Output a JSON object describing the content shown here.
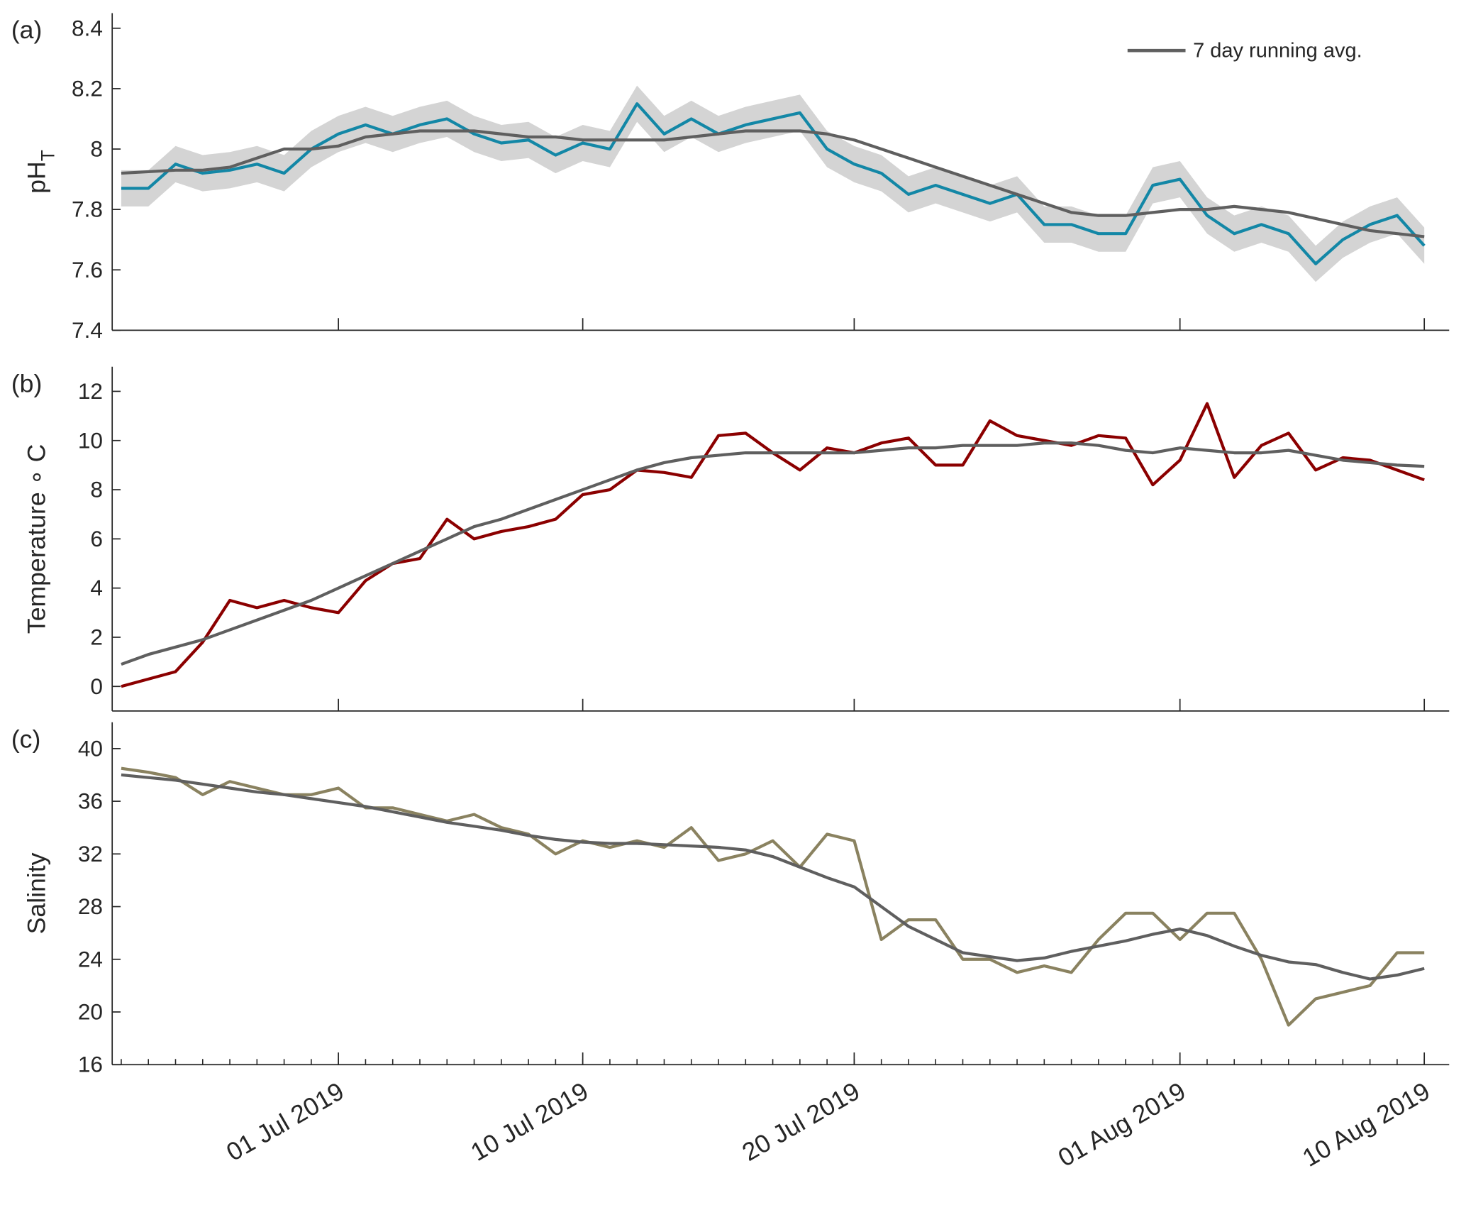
{
  "chart_data": [
    {
      "type": "line",
      "panel_label": "(a)",
      "ylabel": "pH",
      "ylabel_sub": "T",
      "xlim": [
        "2019-06-22T16:00",
        "2019-08-10T22:00"
      ],
      "xticks": [
        {
          "value": "2019-07-01",
          "label": "01 Jul 2019"
        },
        {
          "value": "2019-07-10",
          "label": "10 Jul 2019"
        },
        {
          "value": "2019-07-20",
          "label": "20 Jul 2019"
        },
        {
          "value": "2019-08-01",
          "label": "01 Aug 2019"
        },
        {
          "value": "2019-08-10",
          "label": "10 Aug 2019"
        }
      ],
      "xticklabels": false,
      "minor_ticks": false,
      "ylim": [
        7.4,
        8.45
      ],
      "yticks": [
        7.4,
        7.6,
        7.8,
        8,
        8.2,
        8.4
      ],
      "x": [
        "2019-06-23",
        "2019-06-24",
        "2019-06-25",
        "2019-06-26",
        "2019-06-27",
        "2019-06-28",
        "2019-06-29",
        "2019-06-30",
        "2019-07-01",
        "2019-07-02",
        "2019-07-03",
        "2019-07-04",
        "2019-07-05",
        "2019-07-06",
        "2019-07-07",
        "2019-07-08",
        "2019-07-09",
        "2019-07-10",
        "2019-07-11",
        "2019-07-12",
        "2019-07-13",
        "2019-07-14",
        "2019-07-15",
        "2019-07-16",
        "2019-07-17",
        "2019-07-18",
        "2019-07-19",
        "2019-07-20",
        "2019-07-21",
        "2019-07-22",
        "2019-07-23",
        "2019-07-24",
        "2019-07-25",
        "2019-07-26",
        "2019-07-27",
        "2019-07-28",
        "2019-07-29",
        "2019-07-30",
        "2019-07-31",
        "2019-08-01",
        "2019-08-02",
        "2019-08-03",
        "2019-08-04",
        "2019-08-05",
        "2019-08-06",
        "2019-08-07",
        "2019-08-08",
        "2019-08-09",
        "2019-08-10"
      ],
      "uncertainty": 0.06,
      "band_color": "#d4d4d4",
      "series": [
        {
          "color": "#1387a6",
          "values": [
            7.87,
            7.87,
            7.95,
            7.92,
            7.93,
            7.95,
            7.92,
            8.0,
            8.05,
            8.08,
            8.05,
            8.08,
            8.1,
            8.05,
            8.02,
            8.03,
            7.98,
            8.02,
            8.0,
            8.15,
            8.05,
            8.1,
            8.05,
            8.08,
            8.1,
            8.12,
            8.0,
            7.95,
            7.92,
            7.85,
            7.88,
            7.85,
            7.82,
            7.85,
            7.75,
            7.75,
            7.72,
            7.72,
            7.88,
            7.9,
            7.78,
            7.72,
            7.75,
            7.72,
            7.62,
            7.7,
            7.75,
            7.78,
            7.68
          ]
        },
        {
          "name": "7 day running avg.",
          "color": "#5f5f5f",
          "values": [
            7.92,
            7.925,
            7.93,
            7.93,
            7.94,
            7.97,
            8.0,
            8.0,
            8.01,
            8.04,
            8.05,
            8.06,
            8.06,
            8.06,
            8.05,
            8.04,
            8.04,
            8.03,
            8.03,
            8.03,
            8.03,
            8.04,
            8.05,
            8.06,
            8.06,
            8.06,
            8.05,
            8.03,
            8.0,
            7.97,
            7.94,
            7.91,
            7.88,
            7.85,
            7.82,
            7.79,
            7.78,
            7.78,
            7.79,
            7.8,
            7.8,
            7.81,
            7.8,
            7.79,
            7.77,
            7.75,
            7.73,
            7.72,
            7.71
          ]
        }
      ],
      "legend": "upper right"
    },
    {
      "type": "line",
      "panel_label": "(b)",
      "ylabel": "Temperature ∘ C",
      "xlim": [
        "2019-06-22T16:00",
        "2019-08-10T22:00"
      ],
      "xticks": [
        {
          "value": "2019-07-01",
          "label": "01 Jul 2019"
        },
        {
          "value": "2019-07-10",
          "label": "10 Jul 2019"
        },
        {
          "value": "2019-07-20",
          "label": "20 Jul 2019"
        },
        {
          "value": "2019-08-01",
          "label": "01 Aug 2019"
        },
        {
          "value": "2019-08-10",
          "label": "10 Aug 2019"
        }
      ],
      "xticklabels": false,
      "minor_ticks": false,
      "ylim": [
        -1,
        13
      ],
      "yticks": [
        0,
        2,
        4,
        6,
        8,
        10,
        12
      ],
      "x": [
        "2019-06-23",
        "2019-06-24",
        "2019-06-25",
        "2019-06-26",
        "2019-06-27",
        "2019-06-28",
        "2019-06-29",
        "2019-06-30",
        "2019-07-01",
        "2019-07-02",
        "2019-07-03",
        "2019-07-04",
        "2019-07-05",
        "2019-07-06",
        "2019-07-07",
        "2019-07-08",
        "2019-07-09",
        "2019-07-10",
        "2019-07-11",
        "2019-07-12",
        "2019-07-13",
        "2019-07-14",
        "2019-07-15",
        "2019-07-16",
        "2019-07-17",
        "2019-07-18",
        "2019-07-19",
        "2019-07-20",
        "2019-07-21",
        "2019-07-22",
        "2019-07-23",
        "2019-07-24",
        "2019-07-25",
        "2019-07-26",
        "2019-07-27",
        "2019-07-28",
        "2019-07-29",
        "2019-07-30",
        "2019-07-31",
        "2019-08-01",
        "2019-08-02",
        "2019-08-03",
        "2019-08-04",
        "2019-08-05",
        "2019-08-06",
        "2019-08-07",
        "2019-08-08",
        "2019-08-09",
        "2019-08-10"
      ],
      "series": [
        {
          "color": "#8b0000",
          "values": [
            0.0,
            0.3,
            0.6,
            1.8,
            3.5,
            3.2,
            3.5,
            3.2,
            3.0,
            4.3,
            5.0,
            5.2,
            6.8,
            6.0,
            6.3,
            6.5,
            6.8,
            7.8,
            8.0,
            8.8,
            8.7,
            8.5,
            10.2,
            10.3,
            9.5,
            8.8,
            9.7,
            9.5,
            9.9,
            10.1,
            9.0,
            9.0,
            10.8,
            10.2,
            10.0,
            9.8,
            10.2,
            10.1,
            8.2,
            9.2,
            11.5,
            8.5,
            9.8,
            10.3,
            8.8,
            9.3,
            9.2,
            8.8,
            8.4
          ]
        },
        {
          "color": "#5f5f5f",
          "values": [
            0.9,
            1.3,
            1.6,
            1.9,
            2.3,
            2.7,
            3.1,
            3.5,
            4.0,
            4.5,
            5.0,
            5.5,
            6.0,
            6.5,
            6.8,
            7.2,
            7.6,
            8.0,
            8.4,
            8.8,
            9.1,
            9.3,
            9.4,
            9.5,
            9.5,
            9.5,
            9.5,
            9.5,
            9.6,
            9.7,
            9.7,
            9.8,
            9.8,
            9.8,
            9.9,
            9.9,
            9.8,
            9.6,
            9.5,
            9.7,
            9.6,
            9.5,
            9.5,
            9.6,
            9.4,
            9.2,
            9.1,
            9.0,
            8.95
          ]
        }
      ]
    },
    {
      "type": "line",
      "panel_label": "(c)",
      "ylabel": "Salinity",
      "xlim": [
        "2019-06-22T16:00",
        "2019-08-10T22:00"
      ],
      "xticks": [
        {
          "value": "2019-07-01",
          "label": "01 Jul 2019"
        },
        {
          "value": "2019-07-10",
          "label": "10 Jul 2019"
        },
        {
          "value": "2019-07-20",
          "label": "20 Jul 2019"
        },
        {
          "value": "2019-08-01",
          "label": "01 Aug 2019"
        },
        {
          "value": "2019-08-10",
          "label": "10 Aug 2019"
        }
      ],
      "xticklabels": true,
      "minor_ticks": true,
      "ylim": [
        16,
        42
      ],
      "yticks": [
        16,
        20,
        24,
        28,
        32,
        36,
        40
      ],
      "x": [
        "2019-06-23",
        "2019-06-24",
        "2019-06-25",
        "2019-06-26",
        "2019-06-27",
        "2019-06-28",
        "2019-06-29",
        "2019-06-30",
        "2019-07-01",
        "2019-07-02",
        "2019-07-03",
        "2019-07-04",
        "2019-07-05",
        "2019-07-06",
        "2019-07-07",
        "2019-07-08",
        "2019-07-09",
        "2019-07-10",
        "2019-07-11",
        "2019-07-12",
        "2019-07-13",
        "2019-07-14",
        "2019-07-15",
        "2019-07-16",
        "2019-07-17",
        "2019-07-18",
        "2019-07-19",
        "2019-07-20",
        "2019-07-21",
        "2019-07-22",
        "2019-07-23",
        "2019-07-24",
        "2019-07-25",
        "2019-07-26",
        "2019-07-27",
        "2019-07-28",
        "2019-07-29",
        "2019-07-30",
        "2019-07-31",
        "2019-08-01",
        "2019-08-02",
        "2019-08-03",
        "2019-08-04",
        "2019-08-05",
        "2019-08-06",
        "2019-08-07",
        "2019-08-08",
        "2019-08-09",
        "2019-08-10"
      ],
      "series": [
        {
          "color": "#8a8260",
          "values": [
            38.5,
            38.2,
            37.8,
            36.5,
            37.5,
            37.0,
            36.5,
            36.5,
            37.0,
            35.5,
            35.5,
            35.0,
            34.5,
            35.0,
            34.0,
            33.5,
            32.0,
            33.0,
            32.5,
            33.0,
            32.5,
            34.0,
            31.5,
            32.0,
            33.0,
            31.0,
            33.5,
            33.0,
            25.5,
            27.0,
            27.0,
            24.0,
            24.0,
            23.0,
            23.5,
            23.0,
            25.5,
            27.5,
            27.5,
            25.5,
            27.5,
            27.5,
            24.0,
            19.0,
            21.0,
            21.5,
            22.0,
            24.5,
            24.5
          ]
        },
        {
          "color": "#5f5f5f",
          "values": [
            38.0,
            37.8,
            37.6,
            37.3,
            37.0,
            36.7,
            36.5,
            36.2,
            35.9,
            35.6,
            35.2,
            34.8,
            34.4,
            34.1,
            33.8,
            33.4,
            33.1,
            32.9,
            32.8,
            32.8,
            32.7,
            32.6,
            32.5,
            32.3,
            31.8,
            31.0,
            30.2,
            29.5,
            28.0,
            26.5,
            25.5,
            24.5,
            24.2,
            23.9,
            24.1,
            24.6,
            25.0,
            25.4,
            25.9,
            26.3,
            25.8,
            25.0,
            24.3,
            23.8,
            23.6,
            23.0,
            22.5,
            22.8,
            23.3
          ]
        }
      ]
    }
  ]
}
